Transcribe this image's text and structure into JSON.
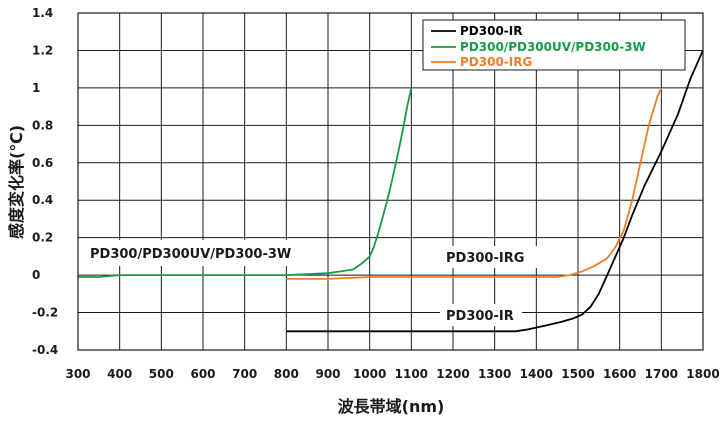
{
  "chart_data": {
    "type": "line",
    "xlabel": "波長帯域(nm)",
    "ylabel": "感度変化率(℃)",
    "xlim": [
      300,
      1800
    ],
    "ylim": [
      -0.4,
      1.4
    ],
    "xticks": [
      300,
      400,
      500,
      600,
      700,
      800,
      900,
      1000,
      1100,
      1200,
      1300,
      1400,
      1500,
      1600,
      1700,
      1800
    ],
    "yticks": [
      -0.4,
      -0.2,
      0,
      0.2,
      0.4,
      0.6,
      0.8,
      1,
      1.2,
      1.4
    ],
    "ytick_labels": [
      "-0.4",
      "-0.2",
      "0",
      "0.2",
      "0.4",
      "0.6",
      "0.8",
      "1",
      "1.2",
      "1.4"
    ],
    "grid": true,
    "legend_position": "top-right",
    "series": [
      {
        "name": "PD300-IR",
        "color": "#000000",
        "x": [
          800,
          1000,
          1200,
          1350,
          1380,
          1420,
          1460,
          1490,
          1510,
          1530,
          1550,
          1570,
          1590,
          1610,
          1630,
          1660,
          1700,
          1740,
          1770,
          1800
        ],
        "y": [
          -0.3,
          -0.3,
          -0.3,
          -0.3,
          -0.29,
          -0.27,
          -0.25,
          -0.23,
          -0.21,
          -0.17,
          -0.1,
          0.0,
          0.1,
          0.2,
          0.32,
          0.48,
          0.66,
          0.86,
          1.05,
          1.2
        ]
      },
      {
        "name": "PD300/PD300UV/PD300-3W",
        "color": "#1a9a48",
        "x": [
          300,
          350,
          400,
          500,
          600,
          700,
          800,
          850,
          900,
          930,
          960,
          980,
          1000,
          1010,
          1020,
          1030,
          1040,
          1050,
          1060,
          1070,
          1080,
          1090,
          1100
        ],
        "y": [
          -0.01,
          -0.01,
          0.0,
          0.0,
          0.0,
          0.0,
          0.0,
          0.005,
          0.01,
          0.02,
          0.03,
          0.06,
          0.1,
          0.15,
          0.22,
          0.3,
          0.38,
          0.47,
          0.57,
          0.67,
          0.78,
          0.9,
          1.0
        ]
      },
      {
        "name": "PD300-IRG",
        "color": "#ee7d2b",
        "x": [
          800,
          900,
          1000,
          1100,
          1200,
          1300,
          1400,
          1450,
          1480,
          1510,
          1540,
          1570,
          1590,
          1610,
          1630,
          1650,
          1670,
          1690,
          1700
        ],
        "y": [
          -0.02,
          -0.02,
          -0.01,
          -0.01,
          -0.01,
          -0.01,
          -0.01,
          -0.01,
          0.0,
          0.02,
          0.05,
          0.09,
          0.15,
          0.24,
          0.4,
          0.6,
          0.8,
          0.95,
          1.0
        ]
      }
    ],
    "annotations": [
      "PD300/PD300UV/PD300-3W",
      "PD300-IRG",
      "PD300-IR"
    ]
  }
}
